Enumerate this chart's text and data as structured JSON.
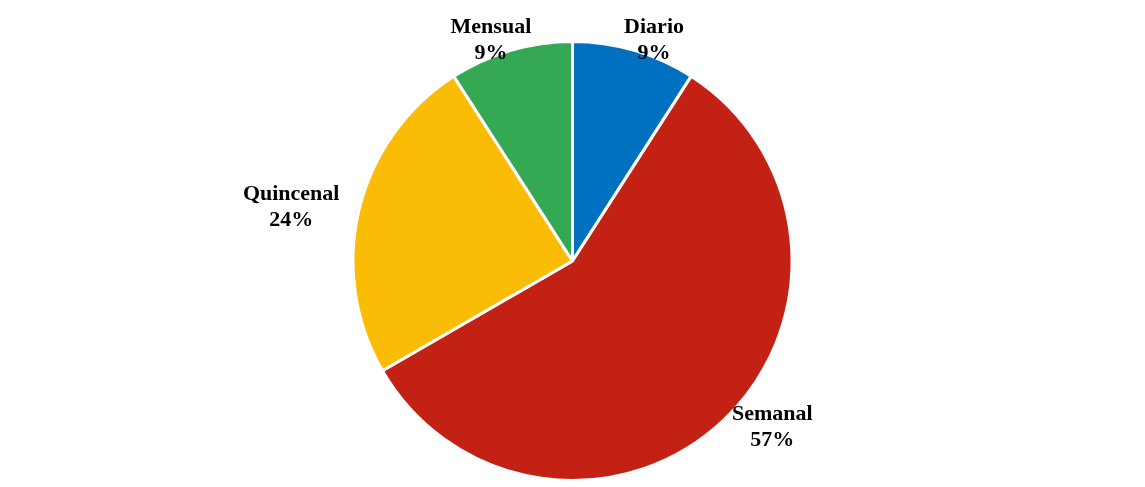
{
  "chart_data": {
    "type": "pie",
    "categories": [
      "Diario",
      "Semanal",
      "Quincenal",
      "Mensual"
    ],
    "values": [
      9,
      57,
      24,
      9
    ],
    "value_labels": [
      "9%",
      "57%",
      "24%",
      "9%"
    ],
    "colors": [
      "#0070c0",
      "#c42115",
      "#fbbc05",
      "#34a853"
    ],
    "legend": false
  }
}
